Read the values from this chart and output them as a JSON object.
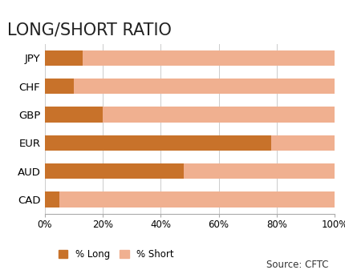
{
  "title": "LONG/SHORT RATIO",
  "categories": [
    "JPY",
    "CHF",
    "GBP",
    "EUR",
    "AUD",
    "CAD"
  ],
  "long_values": [
    13,
    10,
    20,
    78,
    48,
    5
  ],
  "short_values": [
    87,
    90,
    80,
    22,
    52,
    95
  ],
  "color_long": "#C8722A",
  "color_short": "#F0B090",
  "xtick_labels": [
    "0%",
    "20%",
    "40%",
    "60%",
    "80%",
    "100%"
  ],
  "xtick_positions": [
    0,
    20,
    40,
    60,
    80,
    100
  ],
  "legend_long": "% Long",
  "legend_short": "% Short",
  "source_text": "Source: CFTC",
  "title_fontsize": 15,
  "label_fontsize": 9.5,
  "tick_fontsize": 8.5,
  "bar_height": 0.55,
  "background_color": "#FFFFFF",
  "grid_color": "#CCCCCC"
}
